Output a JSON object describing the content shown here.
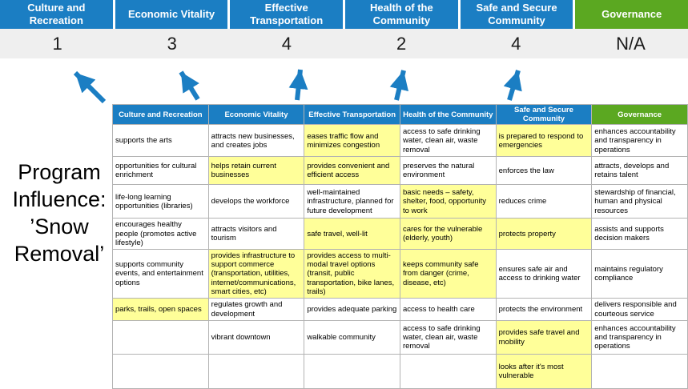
{
  "title": {
    "lines": [
      "Program",
      "Influence:",
      "’Snow",
      "Removal’"
    ]
  },
  "colors": {
    "header_blue": "#1B7EC3",
    "header_green": "#5BA821",
    "highlight_yellow": "#FFFF99",
    "band_gray": "#EFEFEF",
    "border_gray": "#B3B3B3",
    "arrow_blue": "#1B7EC3"
  },
  "scorecard": {
    "columns": [
      {
        "label": "Culture and Recreation",
        "score": "1",
        "variant": "blue"
      },
      {
        "label": "Economic Vitality",
        "score": "3",
        "variant": "blue"
      },
      {
        "label": "Effective Transportation",
        "score": "4",
        "variant": "blue"
      },
      {
        "label": "Health of the Community",
        "score": "2",
        "variant": "blue"
      },
      {
        "label": "Safe and Secure Community",
        "score": "4",
        "variant": "blue"
      },
      {
        "label": "Governance",
        "score": "N/A",
        "variant": "green"
      }
    ]
  },
  "matrix": {
    "headers": [
      {
        "label": "Culture and Recreation",
        "variant": "blue"
      },
      {
        "label": "Economic Vitality",
        "variant": "blue"
      },
      {
        "label": "Effective Transportation",
        "variant": "blue"
      },
      {
        "label": "Health of the Community",
        "variant": "blue"
      },
      {
        "label": "Safe and Secure Community",
        "variant": "blue"
      },
      {
        "label": "Governance",
        "variant": "green"
      }
    ],
    "rows": [
      [
        {
          "text": "supports the arts",
          "hl": false
        },
        {
          "text": "attracts new businesses, and creates jobs",
          "hl": false
        },
        {
          "text": "eases traffic flow and minimizes congestion",
          "hl": true
        },
        {
          "text": "access to safe drinking water, clean air, waste removal",
          "hl": false
        },
        {
          "text": "is prepared to respond to emergencies",
          "hl": true
        },
        {
          "text": "enhances accountability and transparency in operations",
          "hl": false
        }
      ],
      [
        {
          "text": "opportunities for cultural enrichment",
          "hl": false
        },
        {
          "text": "helps retain current businesses",
          "hl": true
        },
        {
          "text": "provides convenient and efficient access",
          "hl": true
        },
        {
          "text": "preserves the natural environment",
          "hl": false
        },
        {
          "text": "enforces the law",
          "hl": false
        },
        {
          "text": "attracts, develops and retains talent",
          "hl": false
        }
      ],
      [
        {
          "text": "life-long learning opportunities (libraries)",
          "hl": false
        },
        {
          "text": "develops the workforce",
          "hl": false
        },
        {
          "text": "well-maintained infrastructure, planned for future development",
          "hl": false
        },
        {
          "text": "basic needs – safety, shelter, food, opportunity to work",
          "hl": true
        },
        {
          "text": "reduces crime",
          "hl": false
        },
        {
          "text": "stewardship of financial, human and physical resources",
          "hl": false
        }
      ],
      [
        {
          "text": "encourages healthy people (promotes active lifestyle)",
          "hl": false
        },
        {
          "text": "attracts visitors and tourism",
          "hl": false
        },
        {
          "text": "safe travel, well-lit",
          "hl": true
        },
        {
          "text": "cares for the vulnerable (elderly, youth)",
          "hl": true
        },
        {
          "text": "protects property",
          "hl": true
        },
        {
          "text": "assists and supports decision makers",
          "hl": false
        }
      ],
      [
        {
          "text": "supports community events, and entertainment options",
          "hl": false
        },
        {
          "text": "provides infrastructure to support commerce (transportation, utilities, internet/communications, smart cities, etc)",
          "hl": true
        },
        {
          "text": "provides access to multi-modal travel options (transit, public transportation, bike lanes, trails)",
          "hl": true
        },
        {
          "text": "keeps community safe from danger (crime, disease, etc)",
          "hl": true
        },
        {
          "text": "ensures safe air and access to drinking water",
          "hl": false
        },
        {
          "text": "maintains regulatory compliance",
          "hl": false
        }
      ],
      [
        {
          "text": "parks, trails, open spaces",
          "hl": true
        },
        {
          "text": "regulates growth and development",
          "hl": false
        },
        {
          "text": "provides adequate parking",
          "hl": false
        },
        {
          "text": "access to health care",
          "hl": false
        },
        {
          "text": "protects the environment",
          "hl": false
        },
        {
          "text": "delivers responsible and courteous service",
          "hl": false
        }
      ],
      [
        {
          "text": "",
          "hl": false
        },
        {
          "text": "vibrant downtown",
          "hl": false
        },
        {
          "text": "walkable community",
          "hl": false
        },
        {
          "text": "access to safe drinking water, clean air, waste removal",
          "hl": false
        },
        {
          "text": "provides safe travel and mobility",
          "hl": true
        },
        {
          "text": "enhances accountability and transparency in operations",
          "hl": false
        }
      ],
      [
        {
          "text": "",
          "hl": false
        },
        {
          "text": "",
          "hl": false
        },
        {
          "text": "",
          "hl": false
        },
        {
          "text": "",
          "hl": false
        },
        {
          "text": "looks after it's most vulnerable",
          "hl": true
        },
        {
          "text": "",
          "hl": false
        }
      ]
    ]
  }
}
